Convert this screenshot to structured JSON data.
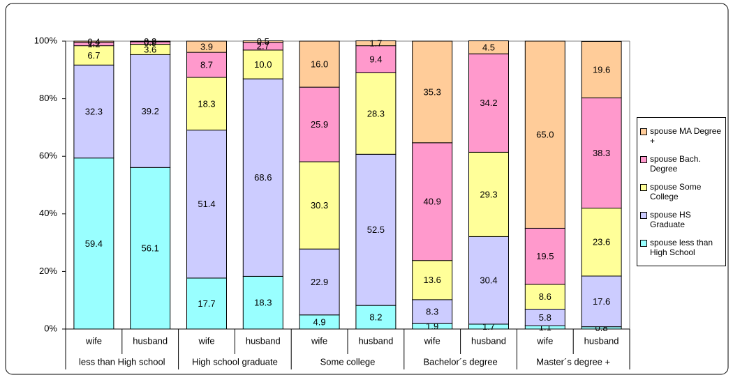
{
  "chart_data": {
    "type": "stacked_bar_percent",
    "categories": [
      "wife",
      "husband",
      "wife",
      "husband",
      "wife",
      "husband",
      "wife",
      "husband",
      "wife",
      "husband"
    ],
    "groups": [
      "less than High school",
      "High school graduate",
      "Some college",
      "Bachelor´s degree",
      "Master´s degree +"
    ],
    "series": [
      {
        "name": "spouse less than High School",
        "color": "#99ffff",
        "values": [
          59.4,
          56.1,
          17.7,
          18.3,
          4.9,
          8.2,
          1.9,
          1.7,
          1.1,
          0.8
        ],
        "value_labels": [
          "59.4",
          "56.1",
          "17.7",
          "18.3",
          "4.9",
          "8.2",
          "1.9",
          "1.7",
          "1.1",
          "0.8"
        ]
      },
      {
        "name": "spouse HS Graduate",
        "color": "#ccccff",
        "values": [
          32.3,
          39.2,
          51.4,
          68.6,
          22.9,
          52.5,
          8.3,
          30.4,
          5.8,
          17.6
        ],
        "value_labels": [
          "32.3",
          "39.2",
          "51.4",
          "68.6",
          "22.9",
          "52.5",
          "8.3",
          "30.4",
          "5.8",
          "17.6"
        ]
      },
      {
        "name": "spouse Some College",
        "color": "#ffff99",
        "values": [
          6.7,
          3.6,
          18.3,
          10.0,
          30.3,
          28.3,
          13.6,
          29.3,
          8.6,
          23.6
        ],
        "value_labels": [
          "6.7",
          "3.6",
          "18.3",
          "10.0",
          "30.3",
          "28.3",
          "13.6",
          "29.3",
          "8.6",
          "23.6"
        ]
      },
      {
        "name": "spouse Bach. Degree",
        "color": "#ff99cc",
        "values": [
          1.2,
          0.9,
          8.7,
          2.7,
          25.9,
          9.4,
          40.9,
          34.2,
          19.5,
          38.3
        ],
        "value_labels": [
          "1.2",
          "0.9",
          "8.7",
          "2.7",
          "25.9",
          "9.4",
          "40.9",
          "34.2",
          "19.5",
          "38.3"
        ]
      },
      {
        "name": "spouse MA Degree +",
        "color": "#ffcc99",
        "values": [
          0.4,
          0.2,
          3.9,
          0.5,
          16.0,
          1.7,
          35.3,
          4.5,
          65.0,
          19.6
        ],
        "value_labels": [
          "0.4",
          "0.2",
          "3.9",
          "0.5",
          "16.0",
          "1.7",
          "35.3",
          "4.5",
          "65.0",
          "19.6"
        ]
      }
    ],
    "ylim": [
      0,
      100
    ],
    "yticks": [
      {
        "value": 0,
        "label": "0%"
      },
      {
        "value": 20,
        "label": "20%"
      },
      {
        "value": 40,
        "label": "40%"
      },
      {
        "value": 60,
        "label": "60%"
      },
      {
        "value": 80,
        "label": "80%"
      },
      {
        "value": 100,
        "label": "100%"
      }
    ],
    "legend": "right"
  }
}
